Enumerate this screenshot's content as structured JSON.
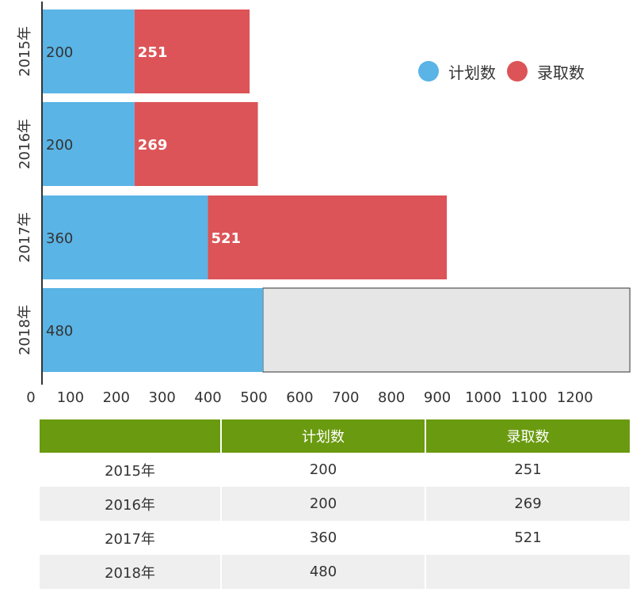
{
  "chart_data": {
    "type": "bar",
    "orientation": "horizontal",
    "stacked": true,
    "categories": [
      "2015年",
      "2016年",
      "2017年",
      "2018年"
    ],
    "series": [
      {
        "name": "计划数",
        "color": "#5ab4e5",
        "values": [
          200,
          200,
          360,
          480
        ]
      },
      {
        "name": "录取数",
        "color": "#dc5457",
        "values": [
          251,
          269,
          521,
          null
        ]
      }
    ],
    "xticks": [
      "0",
      "100",
      "200",
      "300",
      "400",
      "500",
      "600",
      "700",
      "800",
      "900",
      "1000",
      "1100",
      "1200"
    ],
    "xlim": [
      0,
      1300
    ],
    "pending_segment": {
      "category": "2018年",
      "start": 480,
      "end": 1280,
      "fill": "#e6e6e6",
      "border": "#333333"
    },
    "legend_position": "top-right",
    "grid": false
  },
  "legend": [
    {
      "label": "计划数",
      "color": "#5ab4e5"
    },
    {
      "label": "录取数",
      "color": "#dc5457"
    }
  ],
  "table": {
    "header": [
      "",
      "计划数",
      "录取数"
    ],
    "rows": [
      [
        "2015年",
        "200",
        "251"
      ],
      [
        "2016年",
        "200",
        "269"
      ],
      [
        "2017年",
        "360",
        "521"
      ],
      [
        "2018年",
        "480",
        ""
      ]
    ]
  }
}
